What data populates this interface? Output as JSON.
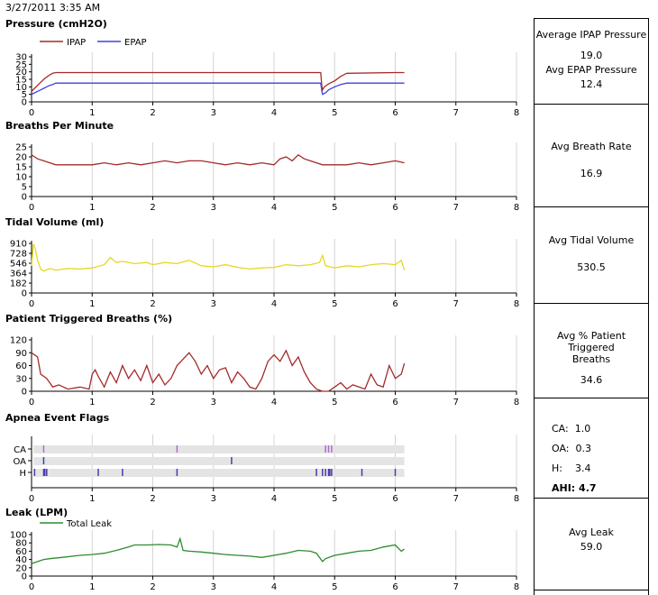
{
  "header": {
    "date": "3/27/2011 3:35 AM"
  },
  "charts": {
    "pressure": {
      "title": "Pressure (cmH2O)"
    },
    "bpm": {
      "title": "Breaths Per Minute"
    },
    "tidal": {
      "title": "Tidal Volume (ml)"
    },
    "ptb": {
      "title": "Patient Triggered Breaths (%)"
    },
    "apnea": {
      "title": "Apnea Event Flags"
    },
    "leak": {
      "title": "Leak (LPM)"
    }
  },
  "panels": {
    "pressure": {
      "label1": "Average IPAP Pressure",
      "value1": "19.0",
      "label2": "Avg EPAP Pressure",
      "value2": "12.4"
    },
    "breath": {
      "label": "Avg Breath Rate",
      "value": "16.9"
    },
    "tidal": {
      "label": "Avg Tidal Volume",
      "value": "530.5"
    },
    "ptb": {
      "label": "Avg % Patient Triggered Breaths",
      "value": "34.6"
    },
    "apnea": {
      "ca": "CA:  1.0",
      "oa": "OA:  0.3",
      "h": "H:    3.4",
      "ahi": "AHI: 4.7"
    },
    "leak": {
      "label": "Avg Leak",
      "value": "59.0"
    }
  },
  "colors": {
    "ipap": "#a52a2a",
    "epap": "#4040e0",
    "bpm": "#a52a2a",
    "tidal": "#e6d820",
    "ptb": "#a52a2a",
    "apnea": "#7a3aa8",
    "leak": "#2e8b2e"
  },
  "chart_data": [
    {
      "id": "pressure",
      "type": "line",
      "title": "Pressure (cmH2O)",
      "xlim": [
        0,
        8
      ],
      "ylim": [
        0,
        30
      ],
      "xticks": [
        "0",
        "1",
        "2",
        "3",
        "4",
        "5",
        "6",
        "7",
        "8"
      ],
      "yticks": [
        "0",
        "5",
        "10",
        "15",
        "20",
        "25",
        "30"
      ],
      "legend": [
        "IPAP",
        "EPAP"
      ],
      "series": [
        {
          "name": "IPAP",
          "color": "#a52a2a",
          "x": [
            0,
            0.05,
            0.1,
            0.15,
            0.2,
            0.25,
            0.3,
            0.35,
            0.4,
            1.0,
            2.0,
            3.0,
            3.8,
            4.5,
            4.77,
            4.79,
            4.8,
            4.83,
            4.9,
            5.0,
            5.1,
            5.2,
            6.0,
            6.15
          ],
          "y": [
            7,
            9,
            11,
            13,
            15,
            16.5,
            18,
            19,
            19.5,
            19.5,
            19.5,
            19.5,
            19.5,
            19.5,
            19.5,
            10,
            8,
            10,
            12,
            14,
            17,
            19,
            19.5,
            19.5
          ]
        },
        {
          "name": "EPAP",
          "color": "#4040e0",
          "x": [
            0,
            0.05,
            0.1,
            0.15,
            0.2,
            0.25,
            0.3,
            0.35,
            0.4,
            1.0,
            2.0,
            3.0,
            4.0,
            4.77,
            4.79,
            4.8,
            4.85,
            4.9,
            5.0,
            5.1,
            5.2,
            6.0,
            6.15
          ],
          "y": [
            5,
            6,
            7,
            8,
            9,
            10,
            11,
            11.5,
            12.5,
            12.5,
            12.5,
            12.5,
            12.5,
            12.5,
            7,
            5,
            6,
            8,
            10,
            11.5,
            12.5,
            12.5,
            12.5
          ]
        }
      ]
    },
    {
      "id": "bpm",
      "type": "line",
      "title": "Breaths Per Minute",
      "xlim": [
        0,
        8
      ],
      "ylim": [
        0,
        25
      ],
      "xticks": [
        "0",
        "1",
        "2",
        "3",
        "4",
        "5",
        "6",
        "7",
        "8"
      ],
      "yticks": [
        "0",
        "5",
        "10",
        "15",
        "20",
        "25"
      ],
      "series": [
        {
          "name": "BPM",
          "color": "#a52a2a",
          "x": [
            0,
            0.05,
            0.1,
            0.2,
            0.3,
            0.4,
            0.6,
            0.8,
            1.0,
            1.2,
            1.4,
            1.6,
            1.8,
            2.0,
            2.2,
            2.4,
            2.6,
            2.8,
            3.0,
            3.2,
            3.4,
            3.6,
            3.8,
            4.0,
            4.1,
            4.2,
            4.3,
            4.4,
            4.5,
            4.6,
            4.7,
            4.8,
            4.9,
            5.0,
            5.2,
            5.4,
            5.6,
            5.8,
            6.0,
            6.15
          ],
          "y": [
            21,
            20,
            19,
            18,
            17,
            16,
            16,
            16,
            16,
            17,
            16,
            17,
            16,
            17,
            18,
            17,
            18,
            18,
            17,
            16,
            17,
            16,
            17,
            16,
            19,
            20,
            18,
            21,
            19,
            18,
            17,
            16,
            16,
            16,
            16,
            17,
            16,
            17,
            18,
            17
          ]
        }
      ]
    },
    {
      "id": "tidal",
      "type": "line",
      "title": "Tidal Volume (ml)",
      "xlim": [
        0,
        8
      ],
      "ylim": [
        0,
        910
      ],
      "xticks": [
        "0",
        "1",
        "2",
        "3",
        "4",
        "5",
        "6",
        "7",
        "8"
      ],
      "yticks": [
        "0",
        "182",
        "364",
        "546",
        "728",
        "910"
      ],
      "series": [
        {
          "name": "Tidal",
          "color": "#e6d820",
          "x": [
            0,
            0.03,
            0.06,
            0.1,
            0.15,
            0.2,
            0.3,
            0.4,
            0.6,
            0.8,
            1.0,
            1.2,
            1.3,
            1.4,
            1.5,
            1.7,
            1.9,
            2.0,
            2.2,
            2.4,
            2.6,
            2.8,
            3.0,
            3.2,
            3.4,
            3.6,
            3.8,
            4.0,
            4.2,
            4.4,
            4.6,
            4.75,
            4.8,
            4.85,
            5.0,
            5.2,
            5.4,
            5.6,
            5.8,
            6.0,
            6.1,
            6.15
          ],
          "y": [
            500,
            900,
            820,
            600,
            440,
            400,
            450,
            420,
            450,
            440,
            460,
            520,
            650,
            560,
            580,
            540,
            560,
            520,
            560,
            540,
            600,
            500,
            480,
            520,
            470,
            440,
            460,
            470,
            520,
            500,
            520,
            560,
            690,
            500,
            460,
            500,
            480,
            520,
            540,
            520,
            600,
            420
          ]
        }
      ]
    },
    {
      "id": "ptb",
      "type": "line",
      "title": "Patient Triggered Breaths (%)",
      "xlim": [
        0,
        8
      ],
      "ylim": [
        0,
        120
      ],
      "xticks": [
        "0",
        "1",
        "2",
        "3",
        "4",
        "5",
        "6",
        "7",
        "8"
      ],
      "yticks": [
        "0",
        "30",
        "60",
        "90",
        "120"
      ],
      "series": [
        {
          "name": "PTB",
          "color": "#a52a2a",
          "x": [
            0,
            0.1,
            0.15,
            0.25,
            0.35,
            0.45,
            0.6,
            0.8,
            0.95,
            1.0,
            1.05,
            1.1,
            1.2,
            1.3,
            1.4,
            1.5,
            1.6,
            1.7,
            1.8,
            1.9,
            2.0,
            2.1,
            2.2,
            2.3,
            2.4,
            2.5,
            2.6,
            2.7,
            2.8,
            2.9,
            3.0,
            3.1,
            3.2,
            3.3,
            3.4,
            3.5,
            3.6,
            3.7,
            3.8,
            3.9,
            4.0,
            4.1,
            4.2,
            4.3,
            4.4,
            4.5,
            4.6,
            4.7,
            4.8,
            4.9,
            5.0,
            5.1,
            5.2,
            5.3,
            5.4,
            5.5,
            5.6,
            5.7,
            5.8,
            5.9,
            6.0,
            6.1,
            6.15
          ],
          "y": [
            90,
            80,
            40,
            30,
            10,
            15,
            5,
            10,
            5,
            40,
            50,
            35,
            10,
            45,
            20,
            60,
            30,
            50,
            25,
            60,
            20,
            40,
            15,
            30,
            60,
            75,
            90,
            70,
            40,
            60,
            30,
            50,
            55,
            20,
            45,
            30,
            10,
            5,
            30,
            70,
            85,
            70,
            95,
            60,
            80,
            45,
            20,
            5,
            0,
            0,
            10,
            20,
            5,
            15,
            10,
            5,
            40,
            15,
            10,
            60,
            30,
            40,
            65
          ]
        }
      ]
    },
    {
      "id": "apnea",
      "type": "scatter",
      "title": "Apnea Event Flags",
      "xlim": [
        0,
        8
      ],
      "xticks": [
        "0",
        "1",
        "2",
        "3",
        "4",
        "5",
        "6",
        "7",
        "8"
      ],
      "categories": [
        "CA",
        "OA",
        "H"
      ],
      "series": [
        {
          "name": "CA",
          "x": [
            0.2,
            2.4,
            4.85,
            4.9,
            4.95
          ]
        },
        {
          "name": "OA",
          "x": [
            0.2,
            3.3
          ]
        },
        {
          "name": "H",
          "x": [
            0.05,
            0.2,
            0.22,
            0.25,
            1.1,
            1.5,
            2.4,
            4.7,
            4.8,
            4.85,
            4.9,
            4.92,
            4.95,
            5.45,
            6.0
          ]
        }
      ]
    },
    {
      "id": "leak",
      "type": "line",
      "title": "Leak (LPM)",
      "xlim": [
        0,
        8
      ],
      "ylim": [
        0,
        100
      ],
      "xticks": [
        "0",
        "1",
        "2",
        "3",
        "4",
        "5",
        "6",
        "7",
        "8"
      ],
      "yticks": [
        "0",
        "20",
        "40",
        "60",
        "80",
        "100"
      ],
      "legend": [
        "Total Leak"
      ],
      "series": [
        {
          "name": "Total Leak",
          "color": "#2e8b2e",
          "x": [
            0,
            0.1,
            0.2,
            0.3,
            0.5,
            0.8,
            1.0,
            1.2,
            1.4,
            1.6,
            1.7,
            1.9,
            2.1,
            2.3,
            2.4,
            2.45,
            2.5,
            2.6,
            2.8,
            3.0,
            3.2,
            3.4,
            3.6,
            3.8,
            4.0,
            4.2,
            4.4,
            4.6,
            4.7,
            4.75,
            4.8,
            4.85,
            5.0,
            5.2,
            5.4,
            5.6,
            5.8,
            6.0,
            6.1,
            6.15
          ],
          "y": [
            30,
            35,
            40,
            42,
            45,
            50,
            52,
            55,
            62,
            70,
            75,
            75,
            76,
            75,
            70,
            90,
            62,
            60,
            58,
            55,
            52,
            50,
            48,
            45,
            50,
            55,
            62,
            60,
            55,
            45,
            35,
            42,
            50,
            55,
            60,
            62,
            70,
            75,
            60,
            65
          ]
        }
      ]
    }
  ]
}
